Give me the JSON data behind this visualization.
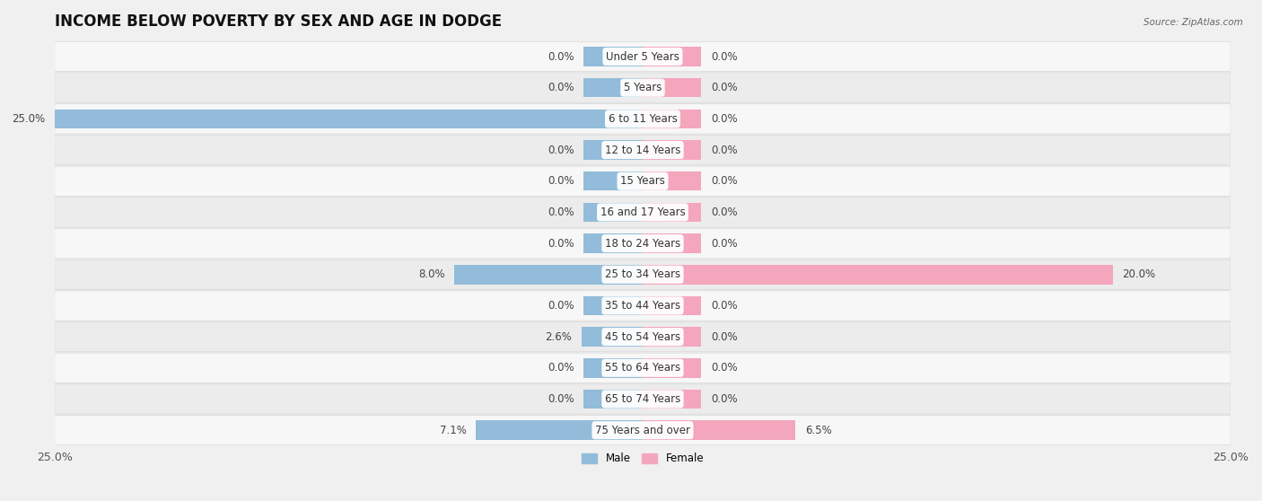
{
  "title": "INCOME BELOW POVERTY BY SEX AND AGE IN DODGE",
  "source": "Source: ZipAtlas.com",
  "categories": [
    "Under 5 Years",
    "5 Years",
    "6 to 11 Years",
    "12 to 14 Years",
    "15 Years",
    "16 and 17 Years",
    "18 to 24 Years",
    "25 to 34 Years",
    "35 to 44 Years",
    "45 to 54 Years",
    "55 to 64 Years",
    "65 to 74 Years",
    "75 Years and over"
  ],
  "male": [
    0.0,
    0.0,
    25.0,
    0.0,
    0.0,
    0.0,
    0.0,
    8.0,
    0.0,
    2.6,
    0.0,
    0.0,
    7.1
  ],
  "female": [
    0.0,
    0.0,
    0.0,
    0.0,
    0.0,
    0.0,
    0.0,
    20.0,
    0.0,
    0.0,
    0.0,
    0.0,
    6.5
  ],
  "male_color": "#92bcd9",
  "female_color": "#f4a6bc",
  "male_label": "Male",
  "female_label": "Female",
  "axis_limit": 25.0,
  "bar_height": 0.62,
  "stub_size": 2.5,
  "background_color": "#f0f0f0",
  "row_bg_colors": [
    "#f7f7f7",
    "#ececec"
  ],
  "row_border_color": "#d8d8d8",
  "title_fontsize": 12,
  "label_fontsize": 8.5,
  "tick_fontsize": 9,
  "value_fontsize": 8.5,
  "cat_fontsize": 8.5
}
